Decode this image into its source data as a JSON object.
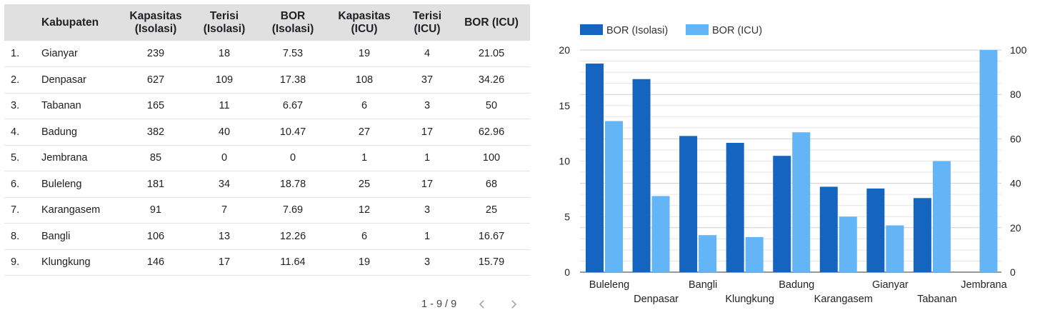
{
  "table": {
    "headers": [
      "",
      "Kabupaten",
      "Kapasitas (Isolasi)",
      "Terisi (Isolasi)",
      "BOR (Isolasi)",
      "Kapasitas (ICU)",
      "Terisi (ICU)",
      "BOR (ICU)"
    ],
    "rows": [
      [
        "1.",
        "Gianyar",
        "239",
        "18",
        "7.53",
        "19",
        "4",
        "21.05"
      ],
      [
        "2.",
        "Denpasar",
        "627",
        "109",
        "17.38",
        "108",
        "37",
        "34.26"
      ],
      [
        "3.",
        "Tabanan",
        "165",
        "11",
        "6.67",
        "6",
        "3",
        "50"
      ],
      [
        "4.",
        "Badung",
        "382",
        "40",
        "10.47",
        "27",
        "17",
        "62.96"
      ],
      [
        "5.",
        "Jembrana",
        "85",
        "0",
        "0",
        "1",
        "1",
        "100"
      ],
      [
        "6.",
        "Buleleng",
        "181",
        "34",
        "18.78",
        "25",
        "17",
        "68"
      ],
      [
        "7.",
        "Karangasem",
        "91",
        "7",
        "7.69",
        "12",
        "3",
        "25"
      ],
      [
        "8.",
        "Bangli",
        "106",
        "13",
        "12.26",
        "6",
        "1",
        "16.67"
      ],
      [
        "9.",
        "Klungkung",
        "146",
        "17",
        "11.64",
        "19",
        "3",
        "15.79"
      ]
    ]
  },
  "pagination": {
    "label": "1 - 9 / 9",
    "prev_icon": "chevron-left-icon",
    "next_icon": "chevron-right-icon"
  },
  "chart_data": {
    "type": "bar",
    "categories": [
      "Buleleng",
      "Denpasar",
      "Bangli",
      "Klungkung",
      "Badung",
      "Karangasem",
      "Gianyar",
      "Tabanan",
      "Jembrana"
    ],
    "series": [
      {
        "name": "BOR (Isolasi)",
        "axis": "left",
        "color": "#1565c0",
        "values": [
          18.78,
          17.38,
          12.26,
          11.64,
          10.47,
          7.69,
          7.53,
          6.67,
          0
        ]
      },
      {
        "name": "BOR (ICU)",
        "axis": "right",
        "color": "#64b5f6",
        "values": [
          68,
          34.26,
          16.67,
          15.79,
          62.96,
          25,
          21.05,
          50,
          100
        ]
      }
    ],
    "ylim_left": [
      0,
      20
    ],
    "ylim_right": [
      0,
      100
    ],
    "yticks_left": [
      0,
      5,
      10,
      15,
      20
    ],
    "yticks_right": [
      0,
      20,
      40,
      60,
      80,
      100
    ],
    "legend_position": "top-left",
    "grid": true
  }
}
